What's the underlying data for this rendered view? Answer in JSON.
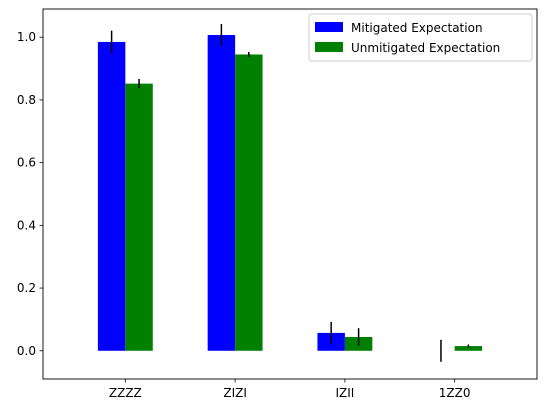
{
  "chart_data": {
    "type": "bar",
    "categories": [
      "ZZZZ",
      "ZIZI",
      "IZII",
      "1ZZ0"
    ],
    "series": [
      {
        "name": "Mitigated Expectation",
        "color": "#0000ff",
        "values": [
          0.985,
          1.007,
          0.057,
          0.0
        ],
        "errors": [
          0.036,
          0.035,
          0.035,
          0.035
        ]
      },
      {
        "name": "Unmitigated Expectation",
        "color": "#008000",
        "values": [
          0.852,
          0.945,
          0.044,
          0.015
        ],
        "errors": [
          0.015,
          0.008,
          0.028,
          0.005
        ]
      }
    ],
    "yticks": [
      0.0,
      0.2,
      0.4,
      0.6,
      0.8,
      1.0
    ],
    "ytick_labels": [
      "0.0",
      "0.2",
      "0.4",
      "0.6",
      "0.8",
      "1.0"
    ],
    "ylim": [
      -0.09,
      1.09
    ],
    "title": "",
    "xlabel": "",
    "ylabel": "",
    "legend_position": "top-right",
    "grid": false
  }
}
